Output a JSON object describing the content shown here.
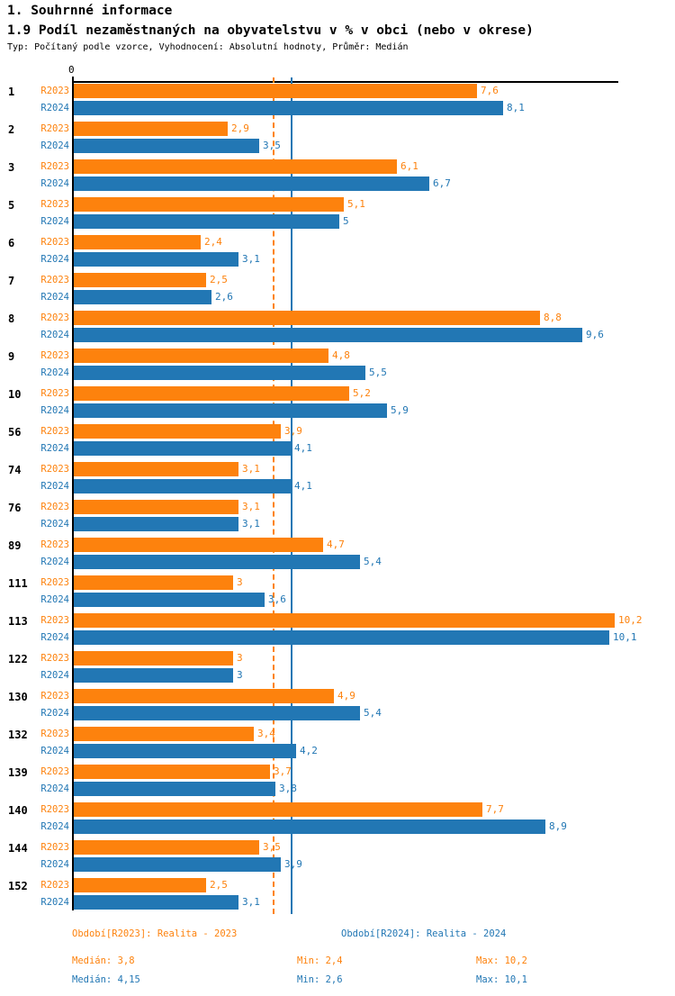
{
  "header": {
    "title": "1. Souhrnné informace",
    "subtitle": "1.9 Podíl nezaměstnaných na obyvatelstvu v % v obci (nebo v okrese)",
    "meta": "Typ: Počítaný podle vzorce, Vyhodnocení: Absolutní hodnoty, Průměr: Medián"
  },
  "chart_data": {
    "type": "bar",
    "orientation": "horizontal",
    "title": "1.9 Podíl nezaměstnaných na obyvatelstvu v % v obci (nebo v okrese)",
    "zero_label": "0",
    "xlim": [
      0,
      10.3
    ],
    "grid": false,
    "categories": [
      "1",
      "2",
      "3",
      "5",
      "6",
      "7",
      "8",
      "9",
      "10",
      "56",
      "74",
      "76",
      "89",
      "111",
      "113",
      "122",
      "130",
      "132",
      "139",
      "140",
      "144",
      "152"
    ],
    "series": [
      {
        "name": "R2023",
        "color": "#fd820d",
        "median": 3.8,
        "min": 2.4,
        "max": 10.2,
        "line_style": "dashed",
        "values": [
          7.6,
          2.9,
          6.1,
          5.1,
          2.4,
          2.5,
          8.8,
          4.8,
          5.2,
          3.9,
          3.1,
          3.1,
          4.7,
          3,
          10.2,
          3,
          4.9,
          3.4,
          3.7,
          7.7,
          3.5,
          2.5
        ]
      },
      {
        "name": "R2024",
        "color": "#2277b4",
        "median": 4.15,
        "min": 2.6,
        "max": 10.1,
        "line_style": "solid",
        "values": [
          8.1,
          3.5,
          6.7,
          5,
          3.1,
          2.6,
          9.6,
          5.5,
          5.9,
          4.1,
          4.1,
          3.1,
          5.4,
          3.6,
          10.1,
          3,
          5.4,
          4.2,
          3.8,
          8.9,
          3.9,
          3.1
        ]
      }
    ]
  },
  "legend": {
    "period_r2023": "Období[R2023]: Realita - 2023",
    "period_r2024": "Období[R2024]: Realita - 2024",
    "stats_r2023": {
      "median": "Medián: 3,8",
      "min": "Min: 2,4",
      "max": "Max: 10,2"
    },
    "stats_r2024": {
      "median": "Medián: 4,15",
      "min": "Min: 2,6",
      "max": "Max: 10,1"
    }
  },
  "colors": {
    "r2023": "#fd820d",
    "r2024": "#2277b4",
    "axis": "#000000",
    "background": "#ffffff"
  }
}
